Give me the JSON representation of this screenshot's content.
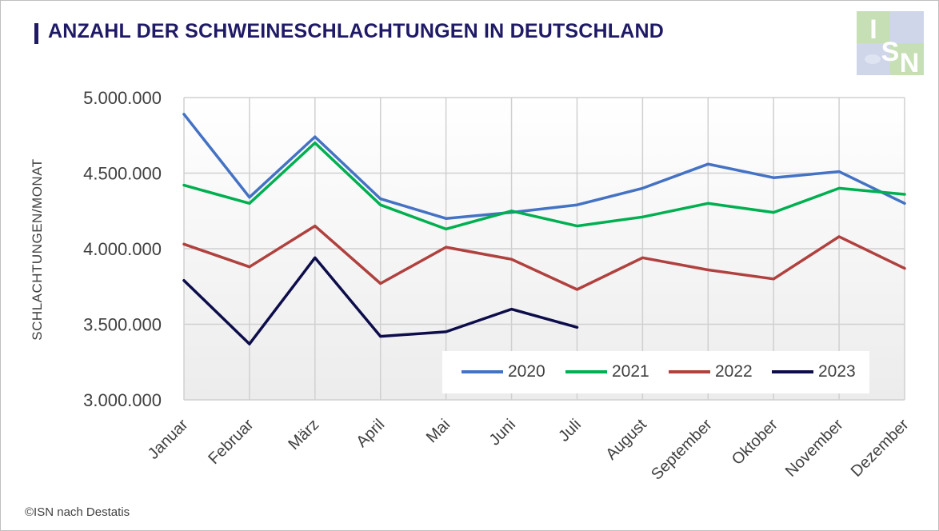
{
  "title": "ANZAHL DER SCHWEINESCHLACHTUNGEN IN DEUTSCHLAND",
  "logo_text": "ISN",
  "source": "©ISN nach Destatis",
  "chart_data": {
    "type": "line",
    "title": "ANZAHL DER SCHWEINESCHLACHTUNGEN IN DEUTSCHLAND",
    "xlabel": "",
    "ylabel": "SCHLACHTUNGEN/MONAT",
    "ylim": [
      3000000,
      5000000
    ],
    "yticks": [
      3000000,
      3500000,
      4000000,
      4500000,
      5000000
    ],
    "ytick_labels": [
      "3.000.000",
      "3.500.000",
      "4.000.000",
      "4.500.000",
      "5.000.000"
    ],
    "categories": [
      "Januar",
      "Februar",
      "März",
      "April",
      "Mai",
      "Juni",
      "Juli",
      "August",
      "September",
      "Oktober",
      "November",
      "Dezember"
    ],
    "grid": true,
    "legend_position": "bottom-right inside plot",
    "series": [
      {
        "name": "2020",
        "color": "#4472c4",
        "values": [
          4890000,
          4340000,
          4740000,
          4330000,
          4200000,
          4240000,
          4290000,
          4400000,
          4560000,
          4470000,
          4510000,
          4300000
        ]
      },
      {
        "name": "2021",
        "color": "#00b050",
        "values": [
          4420000,
          4300000,
          4700000,
          4290000,
          4130000,
          4250000,
          4150000,
          4210000,
          4300000,
          4240000,
          4400000,
          4360000
        ]
      },
      {
        "name": "2022",
        "color": "#b0413e",
        "values": [
          4030000,
          3880000,
          4150000,
          3770000,
          4010000,
          3930000,
          3730000,
          3940000,
          3860000,
          3800000,
          4080000,
          3870000
        ]
      },
      {
        "name": "2023",
        "color": "#0d0d4b",
        "values": [
          3790000,
          3370000,
          3940000,
          3420000,
          3450000,
          3600000,
          3480000,
          null,
          null,
          null,
          null,
          null
        ]
      }
    ]
  }
}
